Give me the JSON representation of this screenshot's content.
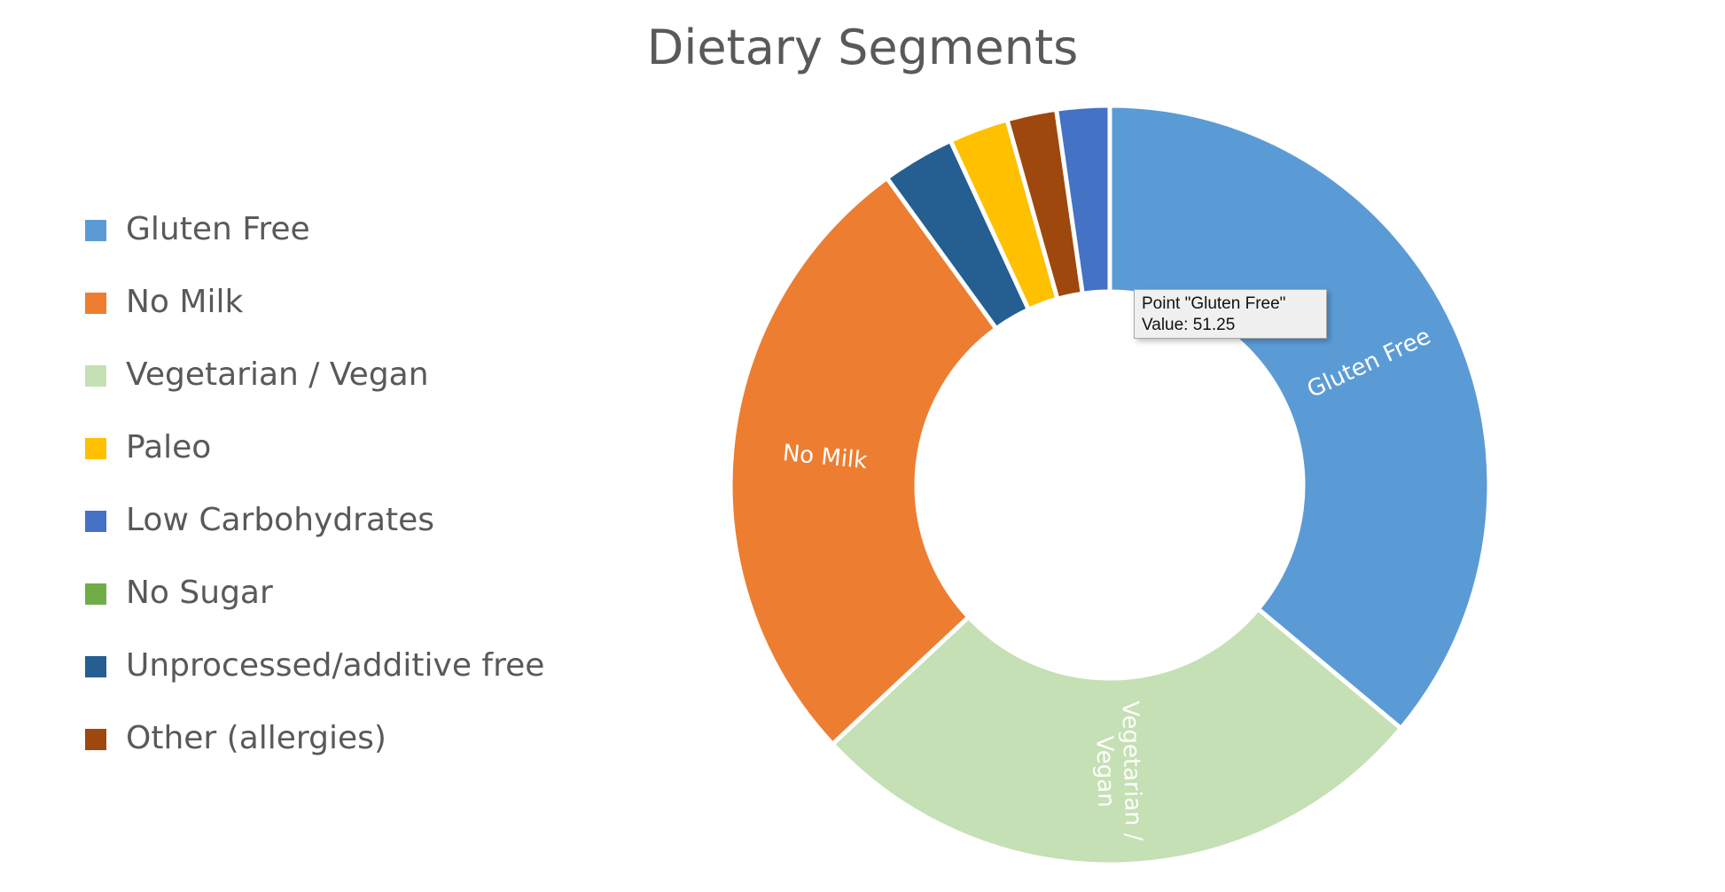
{
  "chart_data": {
    "type": "pie",
    "variant": "donut",
    "title": "Dietary Segments",
    "categories": [
      "Gluten Free",
      "No Milk",
      "Vegetarian / Vegan",
      "Paleo",
      "Low Carbohydrates",
      "No Sugar",
      "Unprocessed/additive free",
      "Other (allergies)"
    ],
    "values": [
      51.25,
      38.3,
      38.3,
      3.6,
      3.2,
      0,
      4.4,
      3.0
    ],
    "colors": [
      "#5B9BD5",
      "#ED7D31",
      "#C5E0B4",
      "#FFC000",
      "#4472C4",
      "#70AD47",
      "#255E91",
      "#9E480E"
    ],
    "slice_order": [
      "Gluten Free",
      "Vegetarian / Vegan",
      "No Milk",
      "Unprocessed/additive free",
      "Paleo",
      "Other (allergies)",
      "Low Carbohydrates"
    ],
    "data_labels": [
      {
        "category": "Gluten Free",
        "text": "Gluten Free"
      },
      {
        "category": "No Milk",
        "text": "No Milk"
      },
      {
        "category": "Vegetarian / Vegan",
        "text": "Vegetarian / Vegan"
      }
    ],
    "legend": {
      "position": "left",
      "entries": [
        "Gluten Free",
        "No Milk",
        "Vegetarian / Vegan",
        "Paleo",
        "Low Carbohydrates",
        "No Sugar",
        "Unprocessed/additive free",
        "Other (allergies)"
      ]
    },
    "tooltip": {
      "line1": "Point \"Gluten Free\"",
      "line2": "Value: 51.25"
    }
  }
}
